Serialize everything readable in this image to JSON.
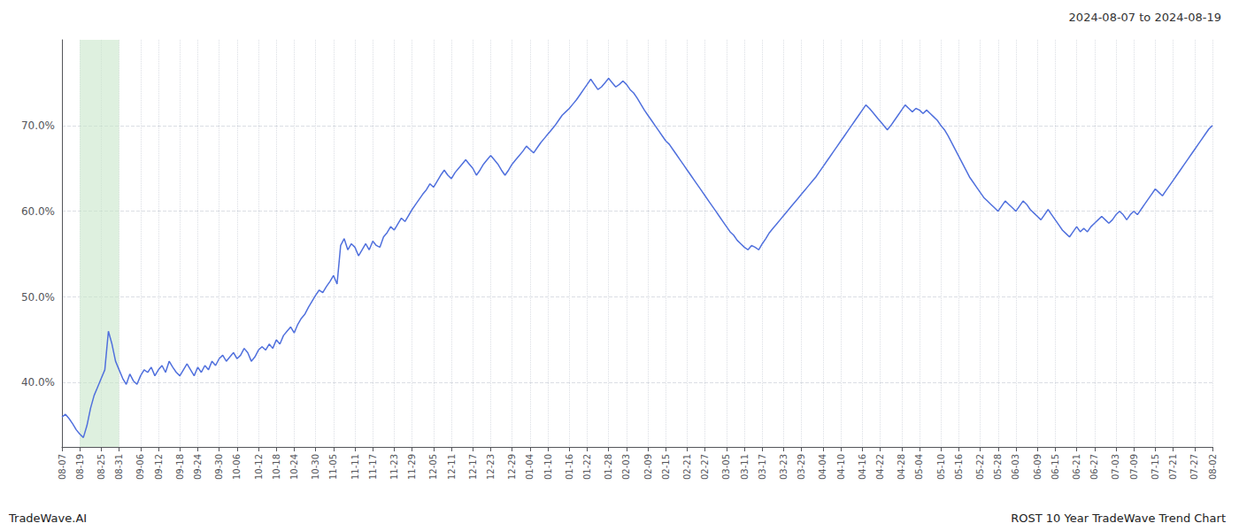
{
  "chart_data": {
    "type": "line",
    "title": "2024-08-07 to 2024-08-19",
    "annotations": [
      "TradeWave.AI",
      "ROST 10 Year TradeWave Trend Chart"
    ],
    "categories": [
      "08-07",
      null,
      null,
      null,
      null,
      "08-19",
      null,
      null,
      null,
      null,
      null,
      "08-25",
      null,
      null,
      null,
      null,
      "08-31",
      null,
      null,
      null,
      null,
      null,
      "09-06",
      null,
      null,
      null,
      null,
      "09-12",
      null,
      null,
      null,
      null,
      null,
      "09-18",
      null,
      null,
      null,
      null,
      "09-24",
      null,
      null,
      null,
      null,
      null,
      "09-30",
      null,
      null,
      null,
      null,
      "10-06",
      null,
      null,
      null,
      null,
      null,
      "10-12",
      null,
      null,
      null,
      null,
      "10-18",
      null,
      null,
      null,
      null,
      "10-24",
      null,
      null,
      null,
      null,
      null,
      "10-30",
      null,
      null,
      null,
      null,
      "11-05",
      null,
      null,
      null,
      null,
      null,
      "11-11",
      null,
      null,
      null,
      null,
      "11-17",
      null,
      null,
      null,
      null,
      null,
      "11-23",
      null,
      null,
      null,
      null,
      "11-29",
      null,
      null,
      null,
      null,
      null,
      "12-05",
      null,
      null,
      null,
      null,
      "12-11",
      null,
      null,
      null,
      null,
      null,
      "12-17",
      null,
      null,
      null,
      null,
      "12-23",
      null,
      null,
      null,
      null,
      null,
      "12-29",
      null,
      null,
      null,
      null,
      "01-04",
      null,
      null,
      null,
      null,
      "01-10",
      null,
      null,
      null,
      null,
      null,
      "01-16",
      null,
      null,
      null,
      null,
      "01-22",
      null,
      null,
      null,
      null,
      null,
      "01-28",
      null,
      null,
      null,
      null,
      "02-03",
      null,
      null,
      null,
      null,
      null,
      "02-09",
      null,
      null,
      null,
      null,
      "02-15",
      null,
      null,
      null,
      null,
      null,
      "02-21",
      null,
      null,
      null,
      null,
      "02-27",
      null,
      null,
      null,
      null,
      null,
      "03-05",
      null,
      null,
      null,
      null,
      "03-11",
      null,
      null,
      null,
      null,
      "03-17",
      null,
      null,
      null,
      null,
      null,
      "03-23",
      null,
      null,
      null,
      null,
      "03-29",
      null,
      null,
      null,
      null,
      null,
      "04-04",
      null,
      null,
      null,
      null,
      "04-10",
      null,
      null,
      null,
      null,
      null,
      "04-16",
      null,
      null,
      null,
      null,
      "04-22",
      null,
      null,
      null,
      null,
      null,
      "04-28",
      null,
      null,
      null,
      null,
      "05-04",
      null,
      null,
      null,
      null,
      null,
      "05-10",
      null,
      null,
      null,
      null,
      "05-16",
      null,
      null,
      null,
      null,
      null,
      "05-22",
      null,
      null,
      null,
      null,
      "05-28",
      null,
      null,
      null,
      null,
      "06-03",
      null,
      null,
      null,
      null,
      null,
      "06-09",
      null,
      null,
      null,
      null,
      "06-15",
      null,
      null,
      null,
      null,
      null,
      "06-21",
      null,
      null,
      null,
      null,
      "06-27",
      null,
      null,
      null,
      null,
      null,
      "07-03",
      null,
      null,
      null,
      null,
      "07-09",
      null,
      null,
      null,
      null,
      null,
      "07-15",
      null,
      null,
      null,
      null,
      "07-21",
      null,
      null,
      null,
      null,
      null,
      "07-27",
      null,
      null,
      null,
      null,
      "08-02"
    ],
    "values": [
      0.36,
      0.363,
      0.358,
      0.352,
      0.345,
      0.34,
      0.336,
      0.35,
      0.37,
      0.385,
      0.395,
      0.405,
      0.415,
      0.46,
      0.445,
      0.425,
      0.415,
      0.405,
      0.398,
      0.41,
      0.402,
      0.398,
      0.408,
      0.415,
      0.412,
      0.418,
      0.408,
      0.415,
      0.42,
      0.412,
      0.425,
      0.418,
      0.412,
      0.408,
      0.415,
      0.422,
      0.415,
      0.408,
      0.418,
      0.412,
      0.42,
      0.415,
      0.425,
      0.42,
      0.428,
      0.432,
      0.425,
      0.43,
      0.435,
      0.428,
      0.432,
      0.44,
      0.435,
      0.425,
      0.43,
      0.438,
      0.442,
      0.438,
      0.445,
      0.44,
      0.45,
      0.445,
      0.455,
      0.46,
      0.465,
      0.458,
      0.468,
      0.475,
      0.48,
      0.488,
      0.495,
      0.502,
      0.508,
      0.505,
      0.512,
      0.518,
      0.525,
      0.515,
      0.56,
      0.568,
      0.555,
      0.562,
      0.558,
      0.548,
      0.555,
      0.562,
      0.555,
      0.565,
      0.56,
      0.558,
      0.57,
      0.575,
      0.582,
      0.578,
      0.585,
      0.592,
      0.588,
      0.595,
      0.602,
      0.608,
      0.614,
      0.62,
      0.625,
      0.632,
      0.628,
      0.635,
      0.642,
      0.648,
      0.642,
      0.638,
      0.645,
      0.65,
      0.655,
      0.66,
      0.655,
      0.65,
      0.642,
      0.648,
      0.655,
      0.66,
      0.665,
      0.66,
      0.655,
      0.648,
      0.642,
      0.648,
      0.655,
      0.66,
      0.665,
      0.67,
      0.676,
      0.672,
      0.668,
      0.674,
      0.68,
      0.685,
      0.69,
      0.695,
      0.7,
      0.706,
      0.712,
      0.716,
      0.72,
      0.725,
      0.73,
      0.736,
      0.742,
      0.748,
      0.754,
      0.748,
      0.742,
      0.745,
      0.75,
      0.755,
      0.75,
      0.745,
      0.748,
      0.752,
      0.748,
      0.742,
      0.738,
      0.732,
      0.725,
      0.718,
      0.712,
      0.706,
      0.7,
      0.694,
      0.688,
      0.682,
      0.678,
      0.672,
      0.666,
      0.66,
      0.654,
      0.648,
      0.642,
      0.636,
      0.63,
      0.624,
      0.618,
      0.612,
      0.606,
      0.6,
      0.594,
      0.588,
      0.582,
      0.576,
      0.572,
      0.566,
      0.562,
      0.558,
      0.555,
      0.56,
      0.558,
      0.555,
      0.562,
      0.568,
      0.575,
      0.58,
      0.585,
      0.59,
      0.595,
      0.6,
      0.605,
      0.61,
      0.615,
      0.62,
      0.625,
      0.63,
      0.635,
      0.64,
      0.646,
      0.652,
      0.658,
      0.664,
      0.67,
      0.676,
      0.682,
      0.688,
      0.694,
      0.7,
      0.706,
      0.712,
      0.718,
      0.724,
      0.72,
      0.715,
      0.71,
      0.705,
      0.7,
      0.695,
      0.7,
      0.706,
      0.712,
      0.718,
      0.724,
      0.72,
      0.716,
      0.72,
      0.718,
      0.714,
      0.718,
      0.714,
      0.71,
      0.706,
      0.7,
      0.695,
      0.688,
      0.68,
      0.672,
      0.664,
      0.656,
      0.648,
      0.64,
      0.634,
      0.628,
      0.622,
      0.616,
      0.612,
      0.608,
      0.604,
      0.6,
      0.606,
      0.612,
      0.608,
      0.604,
      0.6,
      0.606,
      0.612,
      0.608,
      0.602,
      0.598,
      0.594,
      0.59,
      0.596,
      0.602,
      0.596,
      0.59,
      0.584,
      0.578,
      0.574,
      0.57,
      0.576,
      0.582,
      0.576,
      0.58,
      0.576,
      0.582,
      0.586,
      0.59,
      0.594,
      0.59,
      0.586,
      0.59,
      0.596,
      0.6,
      0.596,
      0.59,
      0.596,
      0.6,
      0.596,
      0.602,
      0.608,
      0.614,
      0.62,
      0.626,
      0.622,
      0.618,
      0.624,
      0.63,
      0.636,
      0.642,
      0.648,
      0.654,
      0.66,
      0.666,
      0.672,
      0.678,
      0.684,
      0.69,
      0.696,
      0.7
    ],
    "ylim": [
      0.325,
      0.8
    ],
    "yticks": [
      {
        "value": 0.4,
        "label": "40.0%"
      },
      {
        "value": 0.5,
        "label": "50.0%"
      },
      {
        "value": 0.6,
        "label": "60.0%"
      },
      {
        "value": 0.7,
        "label": "70.0%"
      }
    ],
    "grid": true,
    "highlight": {
      "start": "08-19",
      "end": "08-31",
      "color": "#c8e6c9"
    }
  }
}
